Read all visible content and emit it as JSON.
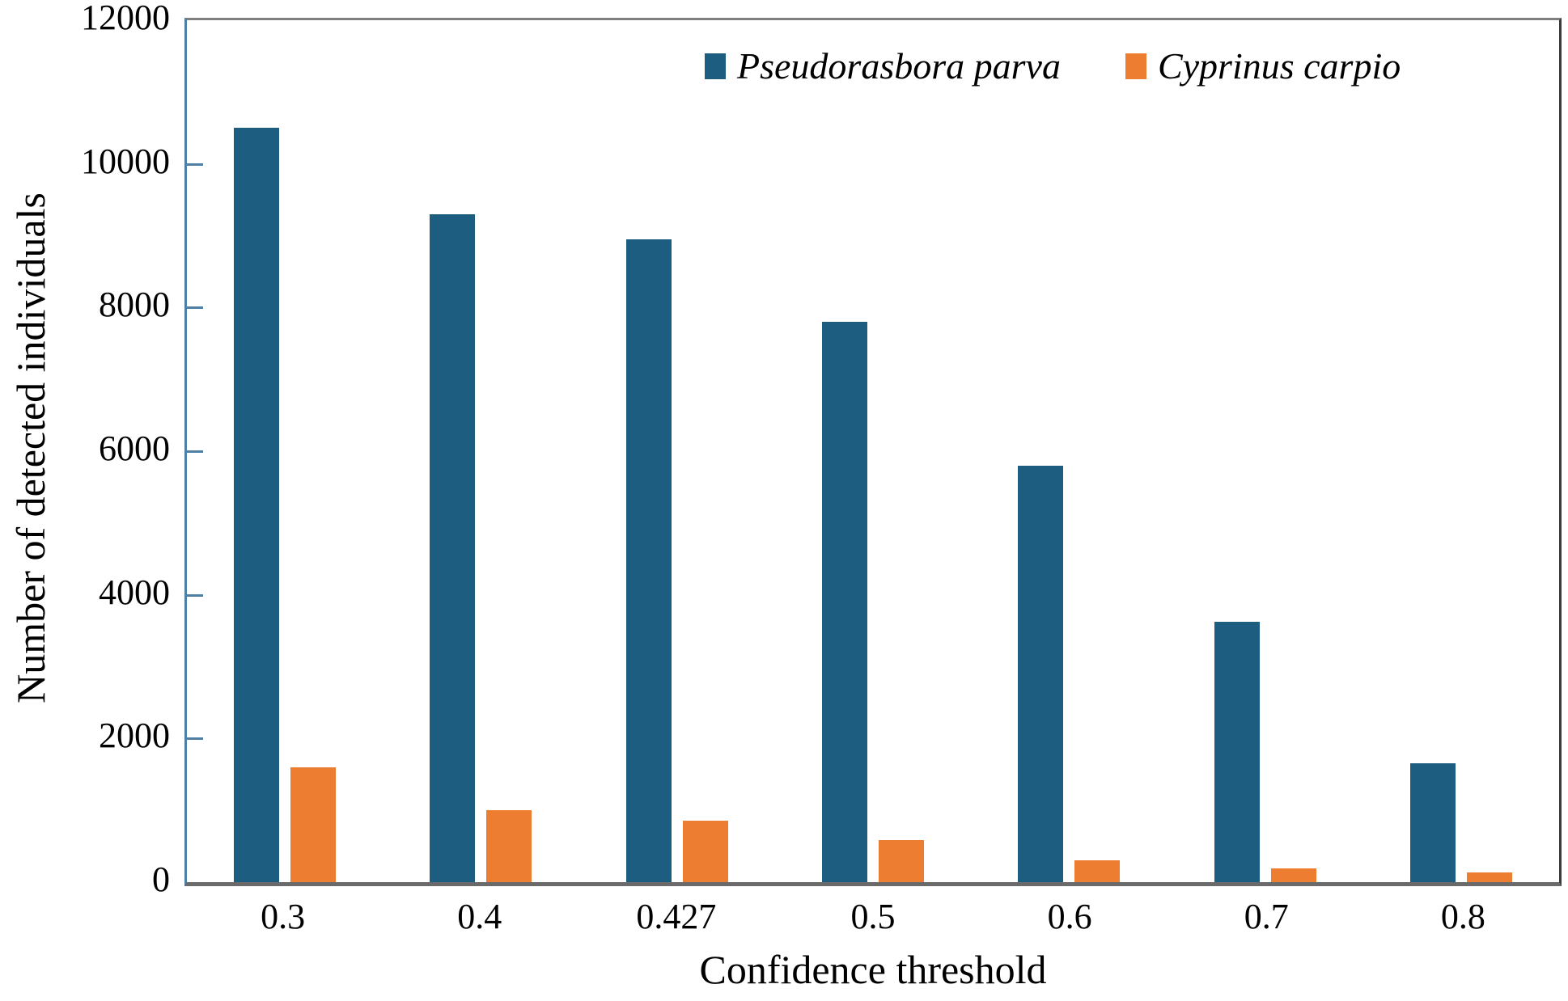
{
  "figure": {
    "background": "#ffffff"
  },
  "chart_data": {
    "type": "bar",
    "title": "",
    "xlabel": "Confidence threshold",
    "ylabel": "Number of detected individuals",
    "categories": [
      "0.3",
      "0.4",
      "0.427",
      "0.5",
      "0.6",
      "0.7",
      "0.8"
    ],
    "series": [
      {
        "name": "Pseudorasbora parva",
        "color": "#1d5e80",
        "values": [
          10500,
          9300,
          8950,
          7800,
          5800,
          3630,
          1650
        ]
      },
      {
        "name": "Cyprinus carpio",
        "color": "#ed7d31",
        "values": [
          1600,
          1000,
          860,
          580,
          300,
          190,
          140
        ]
      }
    ],
    "ylim": [
      0,
      12000
    ],
    "yticks": [
      0,
      2000,
      4000,
      6000,
      8000,
      10000,
      12000
    ],
    "grid": false,
    "legend_position": "top-inside",
    "legend_text_style": "italic",
    "axis_colors": {
      "y_axis_line": "#4d80a4",
      "y_tick_marks": "#4d80a4",
      "plot_border_top": "#7f7f7f",
      "plot_border_right": "#3b3b3b",
      "x_axis_line": "#6a6a6a"
    }
  }
}
